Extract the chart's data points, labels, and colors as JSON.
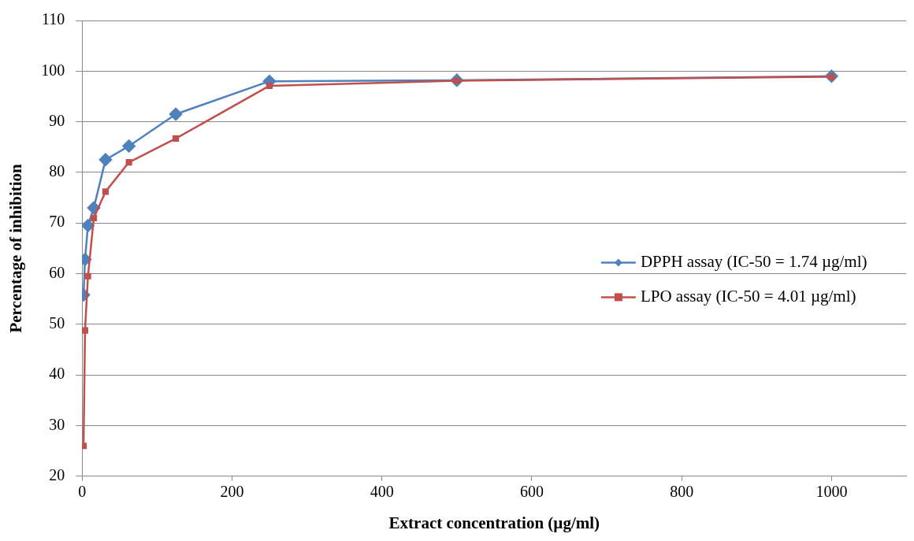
{
  "chart_data": {
    "type": "line",
    "xlabel": "Extract concentration (µg/ml)",
    "ylabel": "Percentage of inhibition",
    "x": [
      1.95,
      3.9,
      7.8,
      15.6,
      31.25,
      62.5,
      125,
      250,
      500,
      1000
    ],
    "series": [
      {
        "name": "DPPH assay (IC-50 = 1.74 µg/ml)",
        "color": "#4f81bd",
        "marker": "diamond",
        "values": [
          55.8,
          62.8,
          69.5,
          73,
          82.5,
          85.2,
          91.5,
          98,
          98.2,
          99
        ]
      },
      {
        "name": "LPO assay (IC-50 = 4.01 µg/ml)",
        "color": "#c0504d",
        "marker": "square",
        "values": [
          26,
          48.8,
          59.5,
          71,
          76.2,
          82,
          86.7,
          97.1,
          98.1,
          98.9
        ]
      }
    ],
    "xlim": [
      0,
      1100
    ],
    "xticks": [
      0,
      200,
      400,
      600,
      800,
      1000
    ],
    "ylim": [
      20,
      110
    ],
    "yticks": [
      20,
      30,
      40,
      50,
      60,
      70,
      80,
      90,
      100,
      110
    ],
    "grid": "y",
    "legend": "right",
    "line_style": "solid"
  }
}
